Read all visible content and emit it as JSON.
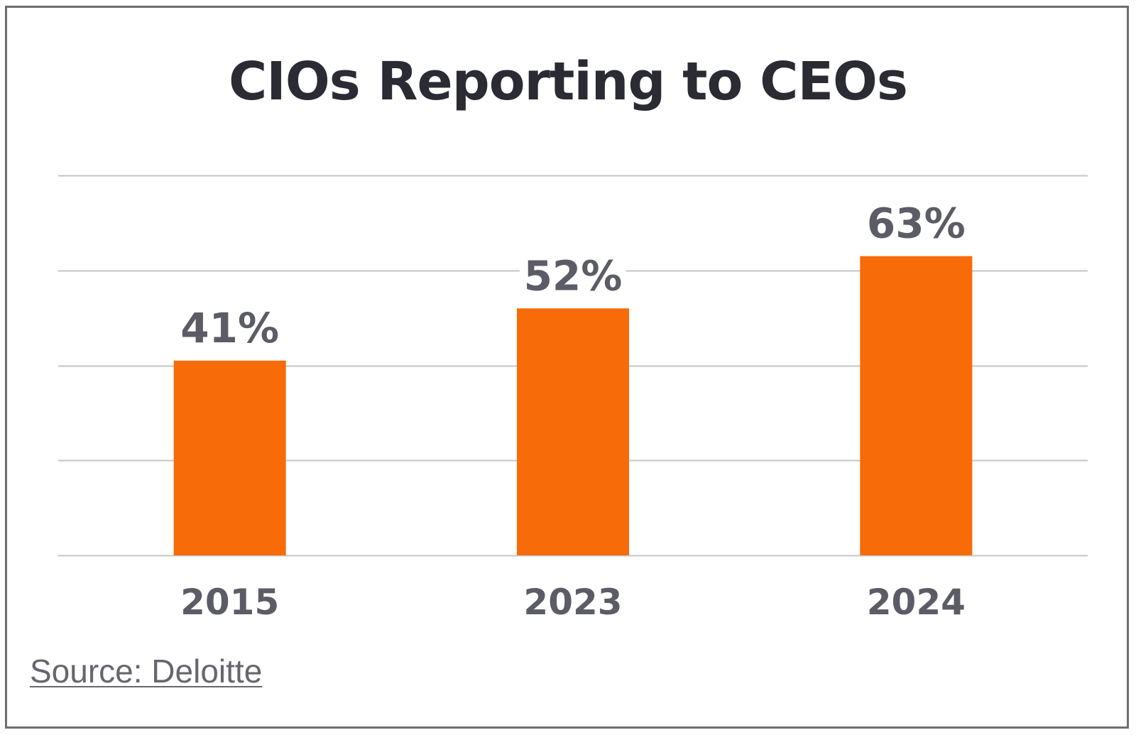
{
  "chart_data": {
    "type": "bar",
    "title": "CIOs Reporting to CEOs",
    "categories": [
      "2015",
      "2023",
      "2024"
    ],
    "values": [
      41,
      52,
      63
    ],
    "value_labels": [
      "41%",
      "52%",
      "63%"
    ],
    "xlabel": "",
    "ylabel": "",
    "ylim": [
      0,
      80
    ],
    "grid": true,
    "legend": "none",
    "bar_color": "#f76b08",
    "label_color": "#5c5c66",
    "grid_color": "#c4c4c4"
  },
  "source": {
    "label": "Source: Deloitte"
  }
}
